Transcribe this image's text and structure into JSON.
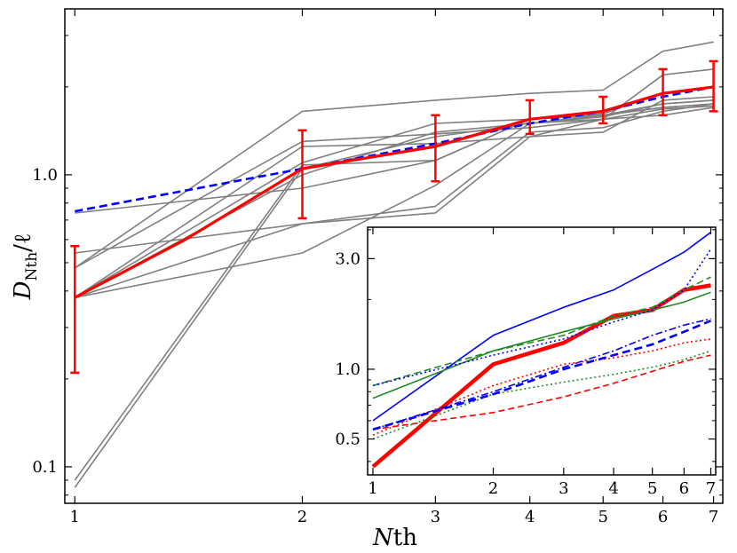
{
  "chart_data": [
    {
      "type": "line",
      "xlabel": "Nth",
      "ylabel": "D_Nth/ℓ",
      "x_scale": "log",
      "y_scale": "log",
      "xlim": [
        0.97,
        7.2
      ],
      "ylim": [
        0.075,
        3.7
      ],
      "x_ticks": [
        1,
        2,
        3,
        4,
        5,
        6,
        7
      ],
      "y_ticks": [
        0.1,
        1.0
      ],
      "y_tick_labels": [
        "0.1",
        "1.0"
      ],
      "colors": {
        "gray": "#808080",
        "red": "#ff0000",
        "blue": "#0000ff"
      },
      "series": [
        {
          "style": "gray",
          "points": [
            [
              1,
              0.085
            ],
            [
              2,
              1.05
            ],
            [
              3,
              1.35
            ],
            [
              4,
              1.5
            ],
            [
              5,
              1.55
            ],
            [
              6,
              2.2
            ],
            [
              7,
              2.3
            ]
          ]
        },
        {
          "style": "gray",
          "points": [
            [
              1,
              0.48
            ],
            [
              2,
              1.65
            ],
            [
              3,
              1.8
            ],
            [
              4,
              1.9
            ],
            [
              5,
              1.95
            ],
            [
              6,
              2.65
            ],
            [
              7,
              2.85
            ]
          ]
        },
        {
          "style": "gray",
          "points": [
            [
              1,
              0.54
            ],
            [
              2,
              0.68
            ],
            [
              3,
              0.78
            ],
            [
              4,
              1.4
            ],
            [
              5,
              1.45
            ],
            [
              6,
              1.65
            ],
            [
              7,
              1.75
            ]
          ]
        },
        {
          "style": "gray",
          "points": [
            [
              1,
              0.38
            ],
            [
              2,
              0.54
            ],
            [
              3,
              0.92
            ],
            [
              4,
              1.5
            ],
            [
              5,
              1.6
            ],
            [
              6,
              1.7
            ],
            [
              7,
              1.75
            ]
          ]
        },
        {
          "style": "gray",
          "points": [
            [
              1,
              0.38
            ],
            [
              2,
              0.68
            ],
            [
              3,
              0.74
            ],
            [
              4,
              1.35
            ],
            [
              5,
              1.55
            ],
            [
              6,
              1.6
            ],
            [
              7,
              1.7
            ]
          ]
        },
        {
          "style": "gray",
          "points": [
            [
              1,
              0.38
            ],
            [
              2,
              1.1
            ],
            [
              3,
              1.5
            ],
            [
              4,
              1.55
            ],
            [
              5,
              1.6
            ],
            [
              6,
              1.75
            ],
            [
              7,
              1.8
            ]
          ]
        },
        {
          "style": "gray",
          "points": [
            [
              1,
              0.38
            ],
            [
              2,
              1.25
            ],
            [
              3,
              1.28
            ],
            [
              4,
              1.35
            ],
            [
              5,
              1.4
            ],
            [
              6,
              1.8
            ],
            [
              7,
              1.85
            ]
          ]
        },
        {
          "style": "gray",
          "points": [
            [
              1,
              0.38
            ],
            [
              2,
              1.0
            ],
            [
              3,
              1.4
            ],
            [
              4,
              1.5
            ],
            [
              5,
              1.58
            ],
            [
              6,
              1.75
            ],
            [
              7,
              1.8
            ]
          ]
        },
        {
          "style": "gray",
          "points": [
            [
              1,
              0.74
            ],
            [
              2,
              0.9
            ],
            [
              3,
              1.12
            ],
            [
              4,
              1.55
            ],
            [
              5,
              1.6
            ],
            [
              6,
              1.7
            ],
            [
              7,
              1.75
            ]
          ]
        },
        {
          "style": "gray",
          "points": [
            [
              1,
              0.48
            ],
            [
              2,
              1.3
            ],
            [
              3,
              1.38
            ],
            [
              4,
              1.45
            ],
            [
              5,
              1.55
            ],
            [
              6,
              1.68
            ],
            [
              7,
              1.72
            ]
          ]
        },
        {
          "style": "gray",
          "points": [
            [
              1,
              0.09
            ],
            [
              2,
              1.08
            ],
            [
              3,
              1.12
            ],
            [
              4,
              1.55
            ],
            [
              5,
              1.62
            ],
            [
              6,
              1.9
            ],
            [
              7,
              2.0
            ]
          ]
        },
        {
          "style": "blue-dashed",
          "points": [
            [
              1,
              0.75
            ],
            [
              2,
              1.05
            ],
            [
              3,
              1.28
            ],
            [
              4,
              1.5
            ],
            [
              5,
              1.65
            ],
            [
              6,
              1.85
            ],
            [
              7,
              2.0
            ]
          ]
        },
        {
          "style": "red-mean",
          "points": [
            [
              1,
              0.38
            ],
            [
              1.4,
              0.6
            ],
            [
              2,
              1.05
            ],
            [
              3,
              1.25
            ],
            [
              4,
              1.55
            ],
            [
              5,
              1.65
            ],
            [
              6,
              1.9
            ],
            [
              7,
              2.0
            ]
          ]
        }
      ],
      "error_bars": [
        {
          "x": 1,
          "low": 0.21,
          "high": 0.57
        },
        {
          "x": 2,
          "low": 0.71,
          "high": 1.42
        },
        {
          "x": 3,
          "low": 0.95,
          "high": 1.6
        },
        {
          "x": 4,
          "low": 1.38,
          "high": 1.8
        },
        {
          "x": 5,
          "low": 1.5,
          "high": 1.85
        },
        {
          "x": 6,
          "low": 1.6,
          "high": 2.3
        },
        {
          "x": 7,
          "low": 1.65,
          "high": 2.45
        }
      ]
    },
    {
      "type": "line",
      "inset": true,
      "x_scale": "log",
      "y_scale": "log",
      "xlim": [
        0.97,
        7.2
      ],
      "ylim": [
        0.35,
        4.1
      ],
      "x_ticks": [
        1,
        2,
        3,
        4,
        5,
        6,
        7
      ],
      "y_ticks": [
        0.5,
        1.0,
        3.0
      ],
      "y_tick_labels": [
        "0.5",
        "1.0",
        "3.0"
      ],
      "colors": {
        "red": "#ff0000",
        "blue": "#0000ff",
        "green": "#228b22"
      },
      "series": [
        {
          "style": "red-thick",
          "points": [
            [
              1,
              0.38
            ],
            [
              2,
              1.05
            ],
            [
              3,
              1.3
            ],
            [
              4,
              1.7
            ],
            [
              5,
              1.8
            ],
            [
              6,
              2.2
            ],
            [
              7,
              2.3
            ]
          ]
        },
        {
          "style": "blue-solid",
          "points": [
            [
              1,
              0.6
            ],
            [
              2,
              1.4
            ],
            [
              3,
              1.85
            ],
            [
              4,
              2.2
            ],
            [
              5,
              2.7
            ],
            [
              6,
              3.2
            ],
            [
              7,
              3.9
            ]
          ]
        },
        {
          "style": "green-solid",
          "points": [
            [
              1,
              0.75
            ],
            [
              2,
              1.2
            ],
            [
              3,
              1.45
            ],
            [
              4,
              1.65
            ],
            [
              5,
              1.8
            ],
            [
              6,
              1.95
            ],
            [
              7,
              2.15
            ]
          ]
        },
        {
          "style": "green-dashed",
          "points": [
            [
              1,
              0.85
            ],
            [
              2,
              1.2
            ],
            [
              3,
              1.4
            ],
            [
              4,
              1.7
            ],
            [
              5,
              1.85
            ],
            [
              6,
              2.2
            ],
            [
              7,
              2.5
            ]
          ]
        },
        {
          "style": "blue-dotted",
          "points": [
            [
              1,
              0.85
            ],
            [
              2,
              1.15
            ],
            [
              3,
              1.35
            ],
            [
              4,
              1.6
            ],
            [
              5,
              1.8
            ],
            [
              6,
              2.2
            ],
            [
              7,
              3.3
            ]
          ]
        },
        {
          "style": "blue-dashdot",
          "points": [
            [
              1,
              0.55
            ],
            [
              2,
              0.8
            ],
            [
              3,
              1.02
            ],
            [
              4,
              1.2
            ],
            [
              5,
              1.4
            ],
            [
              6,
              1.55
            ],
            [
              7,
              1.65
            ]
          ]
        },
        {
          "style": "red-dotted",
          "points": [
            [
              1,
              0.52
            ],
            [
              2,
              0.85
            ],
            [
              3,
              1.05
            ],
            [
              4,
              1.12
            ],
            [
              5,
              1.2
            ],
            [
              6,
              1.3
            ],
            [
              7,
              1.35
            ]
          ]
        },
        {
          "style": "red-dashed",
          "points": [
            [
              1,
              0.55
            ],
            [
              2,
              0.65
            ],
            [
              3,
              0.76
            ],
            [
              4,
              0.87
            ],
            [
              5,
              0.98
            ],
            [
              6,
              1.08
            ],
            [
              7,
              1.15
            ]
          ]
        },
        {
          "style": "green-dotted",
          "points": [
            [
              1,
              0.5
            ],
            [
              2,
              0.78
            ],
            [
              3,
              0.88
            ],
            [
              4,
              0.95
            ],
            [
              5,
              1.02
            ],
            [
              6,
              1.1
            ],
            [
              7,
              1.2
            ]
          ]
        },
        {
          "style": "blue-dashed",
          "points": [
            [
              1,
              0.55
            ],
            [
              2,
              0.78
            ],
            [
              3,
              1.0
            ],
            [
              4,
              1.15
            ],
            [
              5,
              1.28
            ],
            [
              6,
              1.45
            ],
            [
              7,
              1.62
            ]
          ]
        }
      ]
    }
  ]
}
